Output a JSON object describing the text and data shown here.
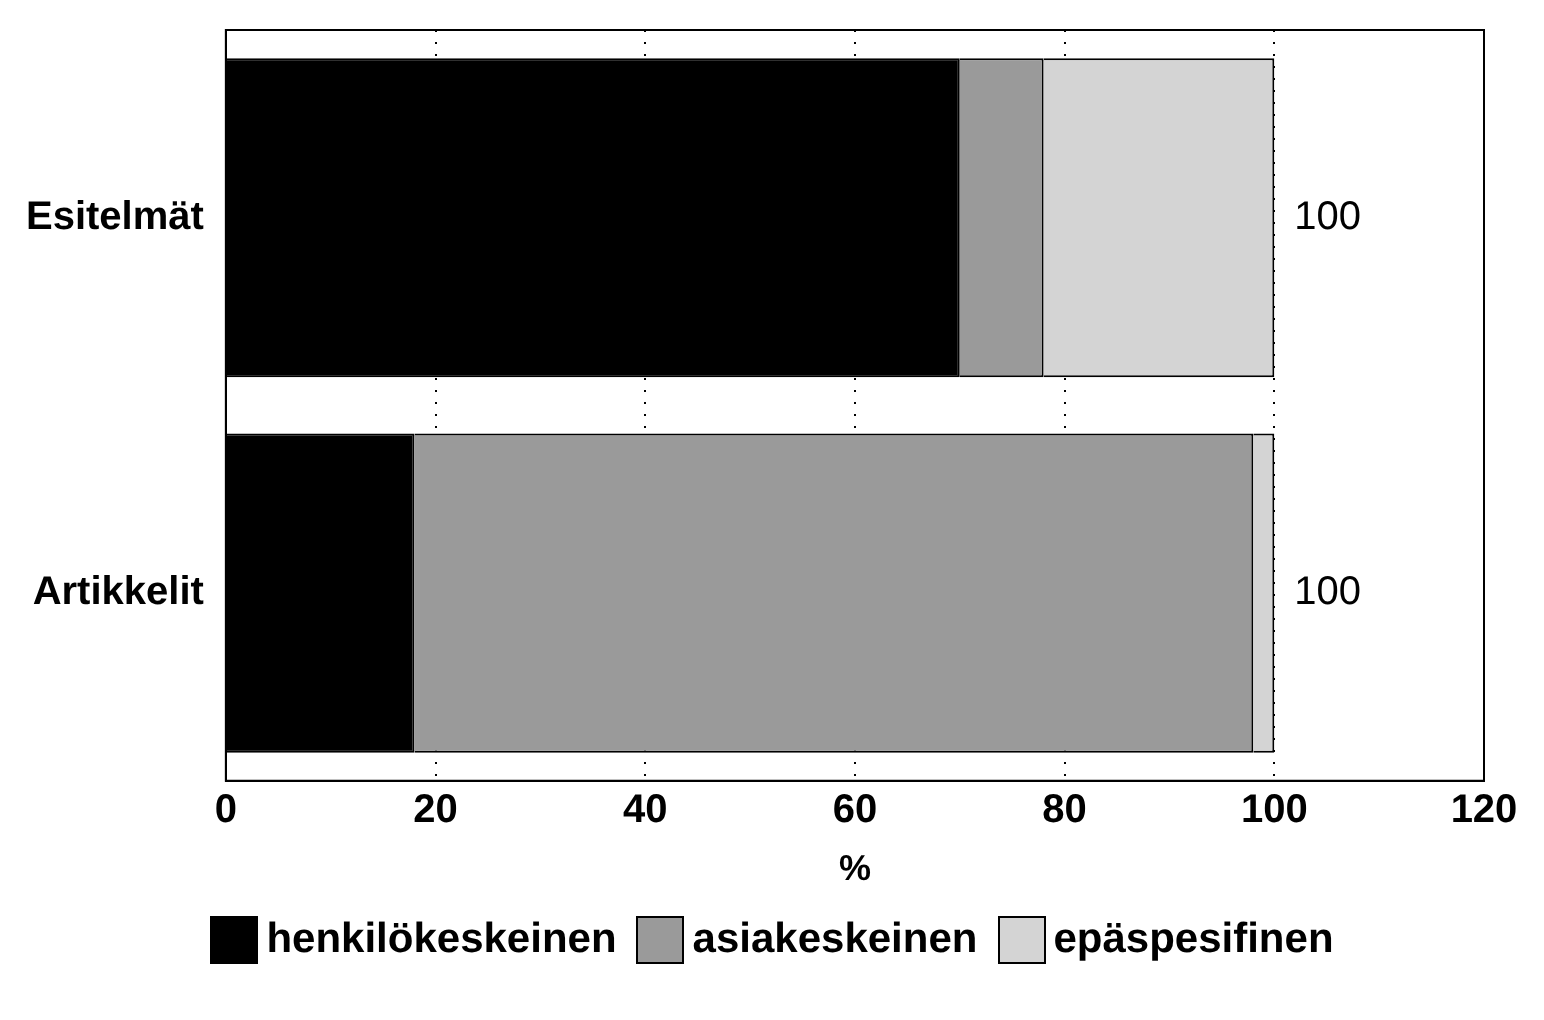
{
  "chart_data": {
    "type": "bar",
    "orientation": "horizontal",
    "stacked": true,
    "categories": [
      "Esitelmät",
      "Artikkelit"
    ],
    "series": [
      {
        "name": "henkilökeskeinen",
        "color": "#000000",
        "values": [
          70,
          18
        ]
      },
      {
        "name": "asiakeskeinen",
        "color": "#9a9a9a",
        "values": [
          8,
          80
        ]
      },
      {
        "name": "epäspesifinen",
        "color": "#d4d4d4",
        "values": [
          22,
          2
        ]
      }
    ],
    "xlabel": "%",
    "xlim": [
      0,
      120
    ],
    "xticks": [
      0,
      20,
      40,
      60,
      80,
      100,
      120
    ],
    "totals": [
      "100",
      "100"
    ],
    "grid": "x",
    "legend": "bottom"
  }
}
